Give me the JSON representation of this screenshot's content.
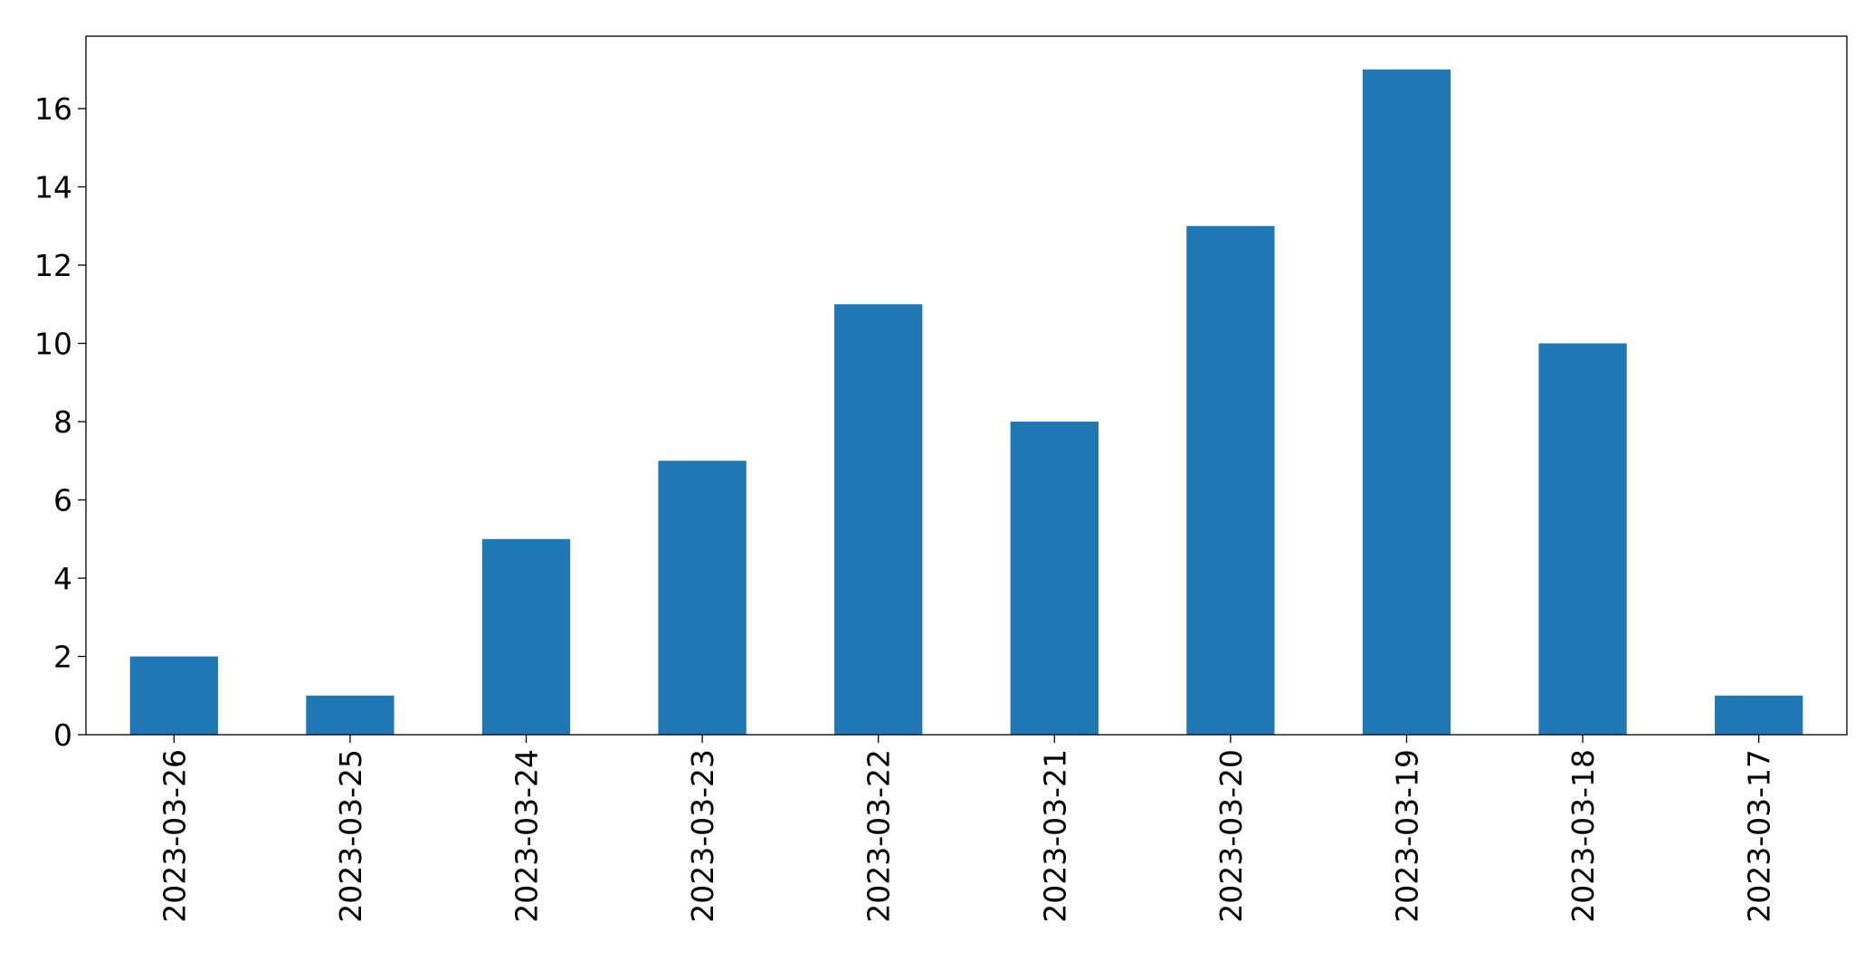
{
  "chart_data": {
    "type": "bar",
    "title": "",
    "xlabel": "",
    "ylabel": "",
    "categories": [
      "2023-03-26",
      "2023-03-25",
      "2023-03-24",
      "2023-03-23",
      "2023-03-22",
      "2023-03-21",
      "2023-03-20",
      "2023-03-19",
      "2023-03-18",
      "2023-03-17"
    ],
    "values": [
      2,
      1,
      5,
      7,
      11,
      8,
      13,
      17,
      10,
      1
    ],
    "ylim": [
      0,
      17.85
    ],
    "yticks": [
      0,
      2,
      4,
      6,
      8,
      10,
      12,
      14,
      16
    ],
    "bar_color": "#1f77b4",
    "grid": false,
    "legend": "none"
  }
}
